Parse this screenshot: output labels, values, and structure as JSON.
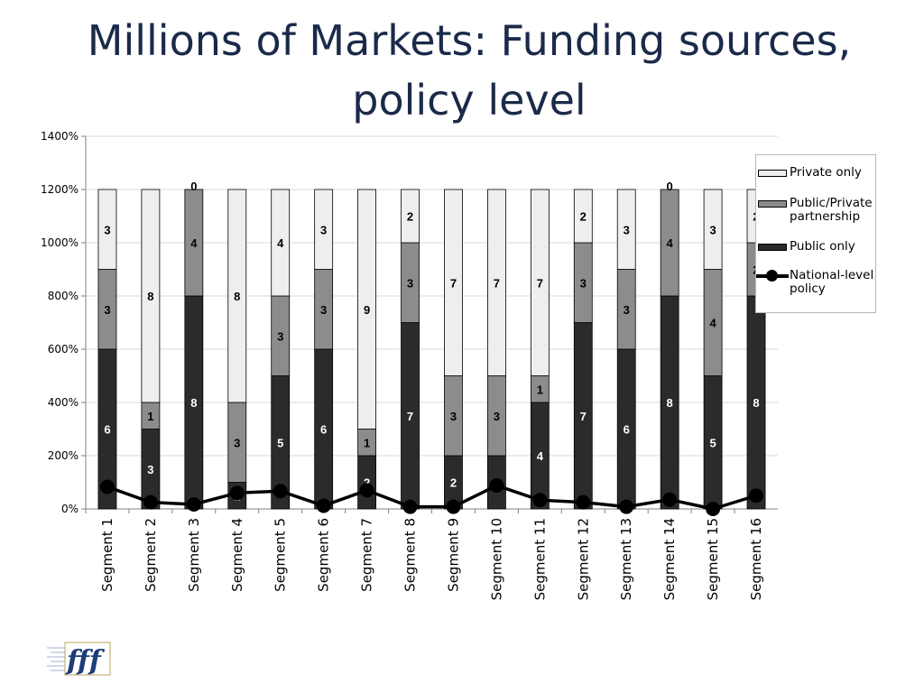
{
  "title_lines": [
    "Millions of Markets: Funding sources,",
    "policy level"
  ],
  "colors": {
    "public_only": "#2b2b2b",
    "public_private": "#8c8c8c",
    "private_only": "#eeeeee",
    "national_line": "#000000"
  },
  "legend": {
    "private_only": "Private only",
    "public_private": "Public/Private partnership",
    "public_only": "Public only",
    "national": "National-level policy"
  },
  "chart_data": {
    "type": "bar",
    "stacked": true,
    "title": "",
    "xlabel": "",
    "ylabel": "",
    "ylim": [
      0,
      1400
    ],
    "yticks": [
      "0%",
      "200%",
      "400%",
      "600%",
      "800%",
      "1000%",
      "1200%",
      "1400%"
    ],
    "grid": true,
    "legend_position": "right",
    "categories": [
      "Segment 1",
      "Segment 2",
      "Segment 3",
      "Segment 4",
      "Segment 5",
      "Segment 6",
      "Segment 7",
      "Segment 8",
      "Segment 9",
      "Segment 10",
      "Segment 11",
      "Segment 12",
      "Segment 13",
      "Segment 14",
      "Segment 15",
      "Segment 16"
    ],
    "series": [
      {
        "name": "Public only",
        "values": [
          600,
          300,
          800,
          100,
          500,
          600,
          200,
          700,
          200,
          200,
          400,
          700,
          600,
          800,
          500,
          800
        ],
        "labels": [
          "6",
          "3",
          "8",
          "1",
          "5",
          "6",
          "2",
          "7",
          "2",
          "2",
          "4",
          "7",
          "6",
          "8",
          "5",
          "8"
        ]
      },
      {
        "name": "Public/Private partnership",
        "values": [
          300,
          100,
          400,
          300,
          300,
          300,
          100,
          300,
          300,
          300,
          100,
          300,
          300,
          400,
          400,
          200
        ],
        "labels": [
          "3",
          "1",
          "4",
          "3",
          "3",
          "3",
          "1",
          "3",
          "3",
          "3",
          "1",
          "3",
          "3",
          "4",
          "4",
          "2"
        ]
      },
      {
        "name": "Private only",
        "values": [
          300,
          800,
          0,
          800,
          400,
          300,
          900,
          200,
          700,
          700,
          700,
          200,
          300,
          0,
          300,
          200
        ],
        "labels": [
          "3",
          "8",
          "0",
          "8",
          "4",
          "3",
          "9",
          "2",
          "7",
          "7",
          "7",
          "2",
          "3",
          "0",
          "3",
          "2"
        ]
      },
      {
        "name": "National-level policy",
        "type": "line",
        "values": [
          83,
          25,
          17,
          60,
          67,
          12,
          70,
          8,
          8,
          88,
          33,
          25,
          8,
          35,
          0,
          50
        ]
      }
    ]
  }
}
